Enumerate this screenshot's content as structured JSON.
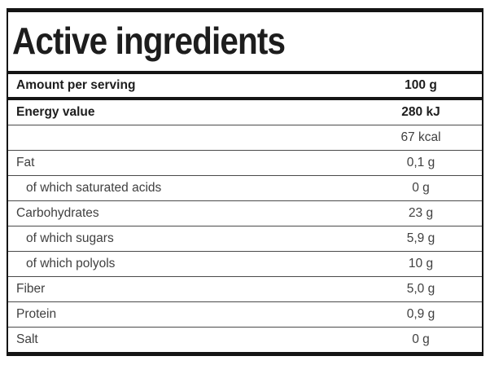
{
  "label": {
    "title": "Active ingredients",
    "colors": {
      "border": "#141414",
      "bold_text": "#1d1d1d",
      "regular_text": "#404040",
      "thin_separator": "#4a4a4a",
      "background": "#ffffff"
    },
    "table": {
      "header": {
        "label": "Amount per serving",
        "value": "100 g"
      },
      "rows": [
        {
          "label": "Energy value",
          "value": "280 kJ"
        },
        {
          "label": "",
          "value": "67 kcal"
        },
        {
          "label": "Fat",
          "value": "0,1 g"
        },
        {
          "label": "of which saturated acids",
          "value": "0 g"
        },
        {
          "label": "Carbohydrates",
          "value": "23 g"
        },
        {
          "label": "of which sugars",
          "value": "5,9 g"
        },
        {
          "label": "of which polyols",
          "value": "10 g"
        },
        {
          "label": "Fiber",
          "value": "5,0 g"
        },
        {
          "label": "Protein",
          "value": "0,9 g"
        },
        {
          "label": "Salt",
          "value": "0 g"
        }
      ]
    }
  }
}
